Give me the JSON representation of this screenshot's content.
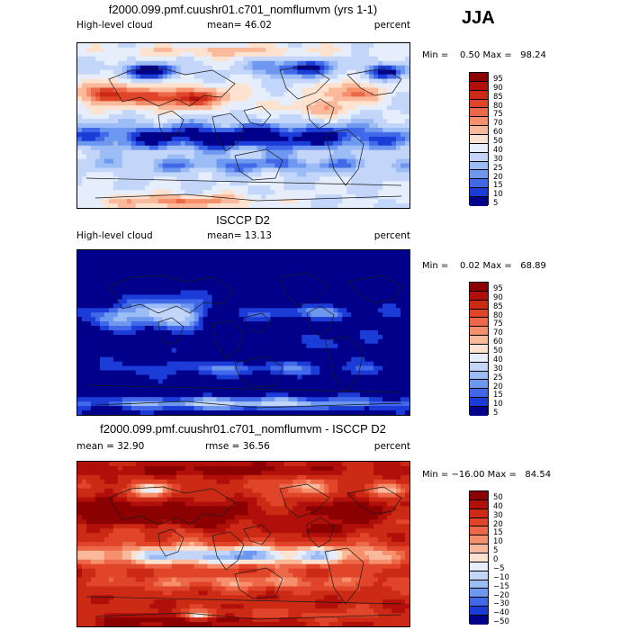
{
  "season": "JJA",
  "chart_data": [
    {
      "type": "heatmap",
      "title": "f2000.099.pmf.cuushr01.c701_nomflumvm (yrs 1-1)",
      "left_label": "High-level cloud",
      "stat_text": "mean=  46.02",
      "units": "percent",
      "min_max_text": "Min =    0.50 Max =   98.24",
      "legend_levels": [
        "95",
        "90",
        "85",
        "80",
        "75",
        "70",
        "60",
        "50",
        "40",
        "30",
        "25",
        "20",
        "15",
        "10",
        "5"
      ],
      "legend_colors": [
        "#8b0000",
        "#b00f0a",
        "#cc2a14",
        "#e0452a",
        "#ec6848",
        "#f6906c",
        "#fab99a",
        "#fde2cf",
        "#e6eefc",
        "#c3d6fa",
        "#9cbcf5",
        "#6e98f0",
        "#4068e8",
        "#1c3cd8",
        "#00008b"
      ],
      "field": "base"
    },
    {
      "type": "heatmap",
      "title": "ISCCP D2",
      "left_label": "High-level cloud",
      "stat_text": "mean=  13.13",
      "units": "percent",
      "min_max_text": "Min =    0.02 Max =   68.89",
      "legend_levels": [
        "95",
        "90",
        "85",
        "80",
        "75",
        "70",
        "60",
        "50",
        "40",
        "30",
        "25",
        "20",
        "15",
        "10",
        "5"
      ],
      "legend_colors": [
        "#8b0000",
        "#b00f0a",
        "#cc2a14",
        "#e0452a",
        "#ec6848",
        "#f6906c",
        "#fab99a",
        "#fde2cf",
        "#e6eefc",
        "#c3d6fa",
        "#9cbcf5",
        "#6e98f0",
        "#4068e8",
        "#1c3cd8",
        "#00008b"
      ],
      "field": "obs"
    },
    {
      "type": "heatmap",
      "title": "f2000.099.pmf.cuushr01.c701_nomflumvm - ISCCP D2",
      "left_label": "mean =   32.90",
      "stat_text": "rmse =   36.56",
      "units": "percent",
      "min_max_text": "Min = −16.00 Max =   84.54",
      "legend_levels": [
        "50",
        "40",
        "30",
        "20",
        "15",
        "10",
        "5",
        "0",
        "−5",
        "−10",
        "−15",
        "−20",
        "−30",
        "−40",
        "−50"
      ],
      "legend_colors": [
        "#8b0000",
        "#b00f0a",
        "#cc2a14",
        "#e0452a",
        "#ec6848",
        "#f6906c",
        "#fab99a",
        "#fde2cf",
        "#e6eefc",
        "#c3d6fa",
        "#9cbcf5",
        "#6e98f0",
        "#4068e8",
        "#1c3cd8",
        "#00008b"
      ],
      "field": "diff"
    }
  ]
}
